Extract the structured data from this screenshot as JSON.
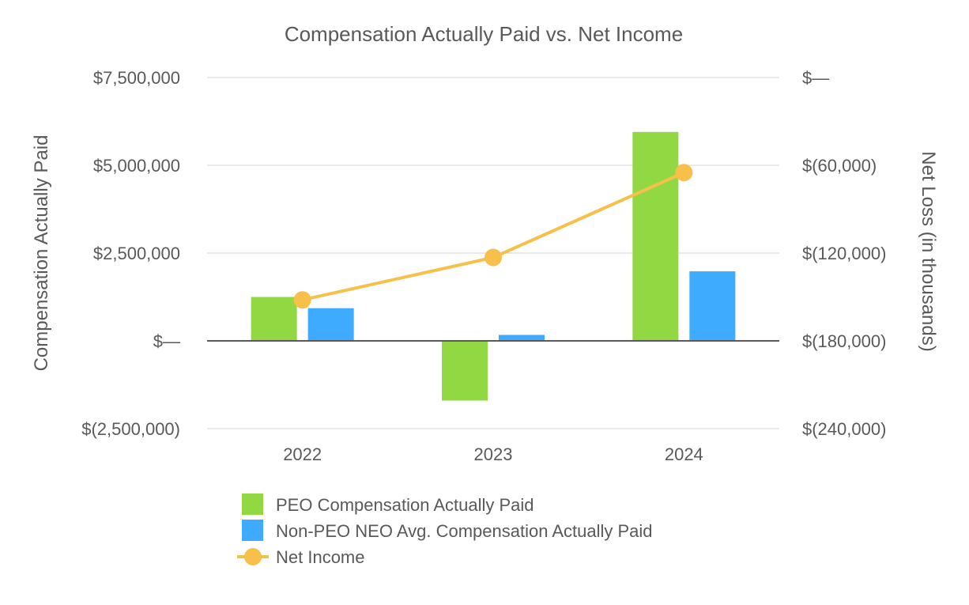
{
  "chart_data": {
    "type": "bar",
    "title": "Compensation Actually Paid vs. Net Income",
    "categories": [
      "2022",
      "2023",
      "2024"
    ],
    "left_axis": {
      "label": "Compensation Actually Paid",
      "min": -2500000,
      "max": 7500000,
      "ticks": [
        7500000,
        5000000,
        2500000,
        0,
        -2500000
      ],
      "tick_labels": [
        "$7,500,000",
        "$5,000,000",
        "$2,500,000",
        "$—",
        "$(2,500,000)"
      ]
    },
    "right_axis": {
      "label": "Net Loss (in thousands)",
      "min": -240000,
      "max": 0,
      "ticks": [
        0,
        -60000,
        -120000,
        -180000,
        -240000
      ],
      "tick_labels": [
        "$—",
        "$(60,000)",
        "$(120,000)",
        "$(180,000)",
        "$(240,000)"
      ]
    },
    "grid": true,
    "legend_position": "bottom",
    "series": [
      {
        "name": "PEO Compensation Actually Paid",
        "kind": "bar",
        "axis": "left",
        "color": "#92d843",
        "values": [
          1250000,
          -1700000,
          5950000
        ]
      },
      {
        "name": "Non-PEO NEO Avg. Compensation Actually Paid",
        "kind": "bar",
        "axis": "left",
        "color": "#3fabff",
        "values": [
          930000,
          170000,
          1980000
        ]
      },
      {
        "name": "Net Income",
        "kind": "line",
        "axis": "right",
        "color": "#f7c04a",
        "values": [
          -152000,
          -123000,
          -65000
        ]
      }
    ]
  }
}
